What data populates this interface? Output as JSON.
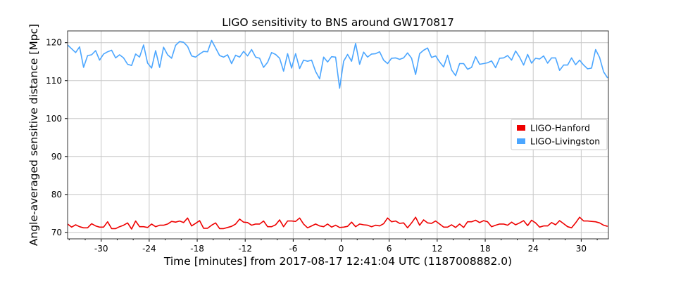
{
  "chart_data": {
    "type": "line",
    "title": "LIGO sensitivity to BNS around GW170817",
    "xlabel": "Time [minutes] from 2017-08-17 12:41:04 UTC (1187008882.0)",
    "ylabel": "Angle-averaged sensitive distance [Mpc]",
    "xlim": [
      -34.2,
      33.4
    ],
    "ylim": [
      68.3,
      123.1
    ],
    "xticks": [
      -30,
      -24,
      -18,
      -12,
      -6,
      0,
      6,
      12,
      18,
      24,
      30
    ],
    "yticks": [
      70,
      80,
      90,
      100,
      110,
      120
    ],
    "grid": true,
    "legend_position": "right",
    "x": [
      -34.2,
      -33.7,
      -33.2,
      -32.7,
      -32.2,
      -31.7,
      -31.2,
      -30.7,
      -30.2,
      -29.7,
      -29.2,
      -28.7,
      -28.2,
      -27.7,
      -27.2,
      -26.7,
      -26.2,
      -25.7,
      -25.2,
      -24.7,
      -24.2,
      -23.7,
      -23.2,
      -22.7,
      -22.2,
      -21.7,
      -21.2,
      -20.7,
      -20.2,
      -19.7,
      -19.2,
      -18.7,
      -18.2,
      -17.7,
      -17.2,
      -16.7,
      -16.2,
      -15.7,
      -15.2,
      -14.7,
      -14.2,
      -13.7,
      -13.2,
      -12.7,
      -12.2,
      -11.7,
      -11.2,
      -10.7,
      -10.2,
      -9.7,
      -9.2,
      -8.7,
      -8.2,
      -7.7,
      -7.2,
      -6.7,
      -6.2,
      -5.7,
      -5.2,
      -4.7,
      -4.2,
      -3.7,
      -3.2,
      -2.7,
      -2.2,
      -1.7,
      -1.2,
      -0.7,
      -0.2,
      0.3,
      0.8,
      1.3,
      1.8,
      2.3,
      2.8,
      3.3,
      3.8,
      4.3,
      4.8,
      5.3,
      5.8,
      6.3,
      6.8,
      7.3,
      7.8,
      8.3,
      8.8,
      9.3,
      9.8,
      10.3,
      10.8,
      11.3,
      11.8,
      12.3,
      12.8,
      13.3,
      13.8,
      14.3,
      14.8,
      15.3,
      15.8,
      16.3,
      16.8,
      17.3,
      17.8,
      18.3,
      18.8,
      19.3,
      19.8,
      20.3,
      20.8,
      21.3,
      21.8,
      22.3,
      22.8,
      23.3,
      23.8,
      24.3,
      24.8,
      25.3,
      25.8,
      26.3,
      26.8,
      27.3,
      27.8,
      28.3,
      28.8,
      29.3,
      29.8,
      30.3,
      30.8,
      31.3,
      31.8,
      32.3,
      32.8,
      33.3
    ],
    "series": [
      {
        "name": "LIGO-Hanford",
        "color": "#ee0000",
        "values": [
          72.2,
          71.4,
          72.0,
          71.5,
          71.2,
          71.2,
          72.3,
          71.7,
          71.4,
          71.4,
          72.8,
          71.0,
          71.0,
          71.5,
          71.9,
          72.5,
          70.9,
          73.0,
          71.5,
          71.5,
          71.3,
          72.2,
          71.5,
          71.9,
          71.9,
          72.2,
          72.9,
          72.7,
          73.0,
          72.6,
          73.8,
          71.7,
          72.4,
          73.1,
          71.1,
          71.1,
          71.9,
          72.5,
          71.0,
          71.0,
          71.3,
          71.6,
          72.2,
          73.5,
          72.7,
          72.6,
          71.9,
          72.2,
          72.2,
          73.0,
          71.5,
          71.5,
          72.0,
          73.3,
          71.5,
          73.0,
          73.0,
          72.9,
          73.8,
          72.2,
          71.2,
          71.7,
          72.2,
          71.7,
          71.5,
          72.2,
          71.4,
          71.9,
          71.3,
          71.4,
          71.6,
          72.7,
          71.5,
          72.2,
          72.0,
          71.9,
          71.5,
          71.9,
          71.7,
          72.3,
          73.8,
          72.8,
          73.0,
          72.4,
          72.5,
          71.2,
          72.5,
          74.0,
          71.9,
          73.3,
          72.5,
          72.4,
          73.0,
          72.2,
          71.4,
          71.4,
          72.0,
          71.3,
          72.2,
          71.3,
          72.8,
          72.8,
          73.2,
          72.6,
          73.1,
          72.8,
          71.5,
          71.9,
          72.2,
          72.2,
          71.9,
          72.7,
          72.0,
          72.5,
          73.1,
          71.8,
          73.2,
          72.5,
          71.4,
          71.7,
          71.7,
          72.6,
          72.0,
          73.1,
          72.3,
          71.5,
          71.2,
          72.5,
          74.0,
          73.0,
          73.0,
          72.9,
          72.8,
          72.5,
          71.9,
          71.6
        ]
      },
      {
        "name": "LIGO-Livingston",
        "color": "#4ba6ff",
        "values": [
          119.4,
          118.4,
          117.4,
          118.9,
          113.5,
          116.6,
          116.8,
          117.9,
          115.4,
          117.0,
          117.6,
          118.0,
          116.0,
          116.8,
          116.0,
          114.3,
          114.0,
          117.0,
          116.2,
          119.4,
          114.6,
          113.3,
          117.9,
          113.5,
          118.8,
          116.8,
          115.9,
          119.3,
          120.3,
          120.1,
          119.0,
          116.5,
          116.2,
          117.0,
          117.7,
          117.6,
          120.6,
          118.6,
          116.6,
          116.2,
          116.8,
          114.5,
          116.7,
          116.2,
          117.7,
          116.5,
          118.2,
          116.2,
          115.9,
          113.5,
          114.8,
          117.4,
          116.9,
          115.9,
          112.5,
          117.1,
          113.3,
          117.1,
          113.2,
          115.4,
          115.1,
          115.4,
          112.4,
          110.5,
          116.2,
          114.9,
          116.3,
          116.2,
          108.0,
          115.1,
          116.9,
          115.1,
          119.8,
          114.3,
          117.5,
          116.2,
          117.0,
          117.1,
          117.6,
          115.4,
          114.5,
          115.9,
          116.0,
          115.6,
          116.0,
          117.3,
          115.9,
          111.6,
          117.1,
          118.0,
          118.6,
          116.1,
          116.5,
          114.9,
          113.6,
          116.7,
          112.8,
          111.3,
          114.5,
          114.5,
          113.0,
          113.5,
          116.3,
          114.3,
          114.5,
          114.7,
          115.2,
          113.4,
          115.9,
          116.0,
          116.6,
          115.4,
          117.8,
          116.2,
          114.1,
          116.9,
          114.6,
          115.9,
          115.7,
          116.5,
          114.6,
          116.0,
          116.0,
          112.7,
          114.1,
          114.1,
          116.0,
          114.2,
          115.4,
          114.1,
          113.1,
          113.3,
          118.2,
          116.1,
          112.3,
          110.7
        ]
      }
    ]
  }
}
